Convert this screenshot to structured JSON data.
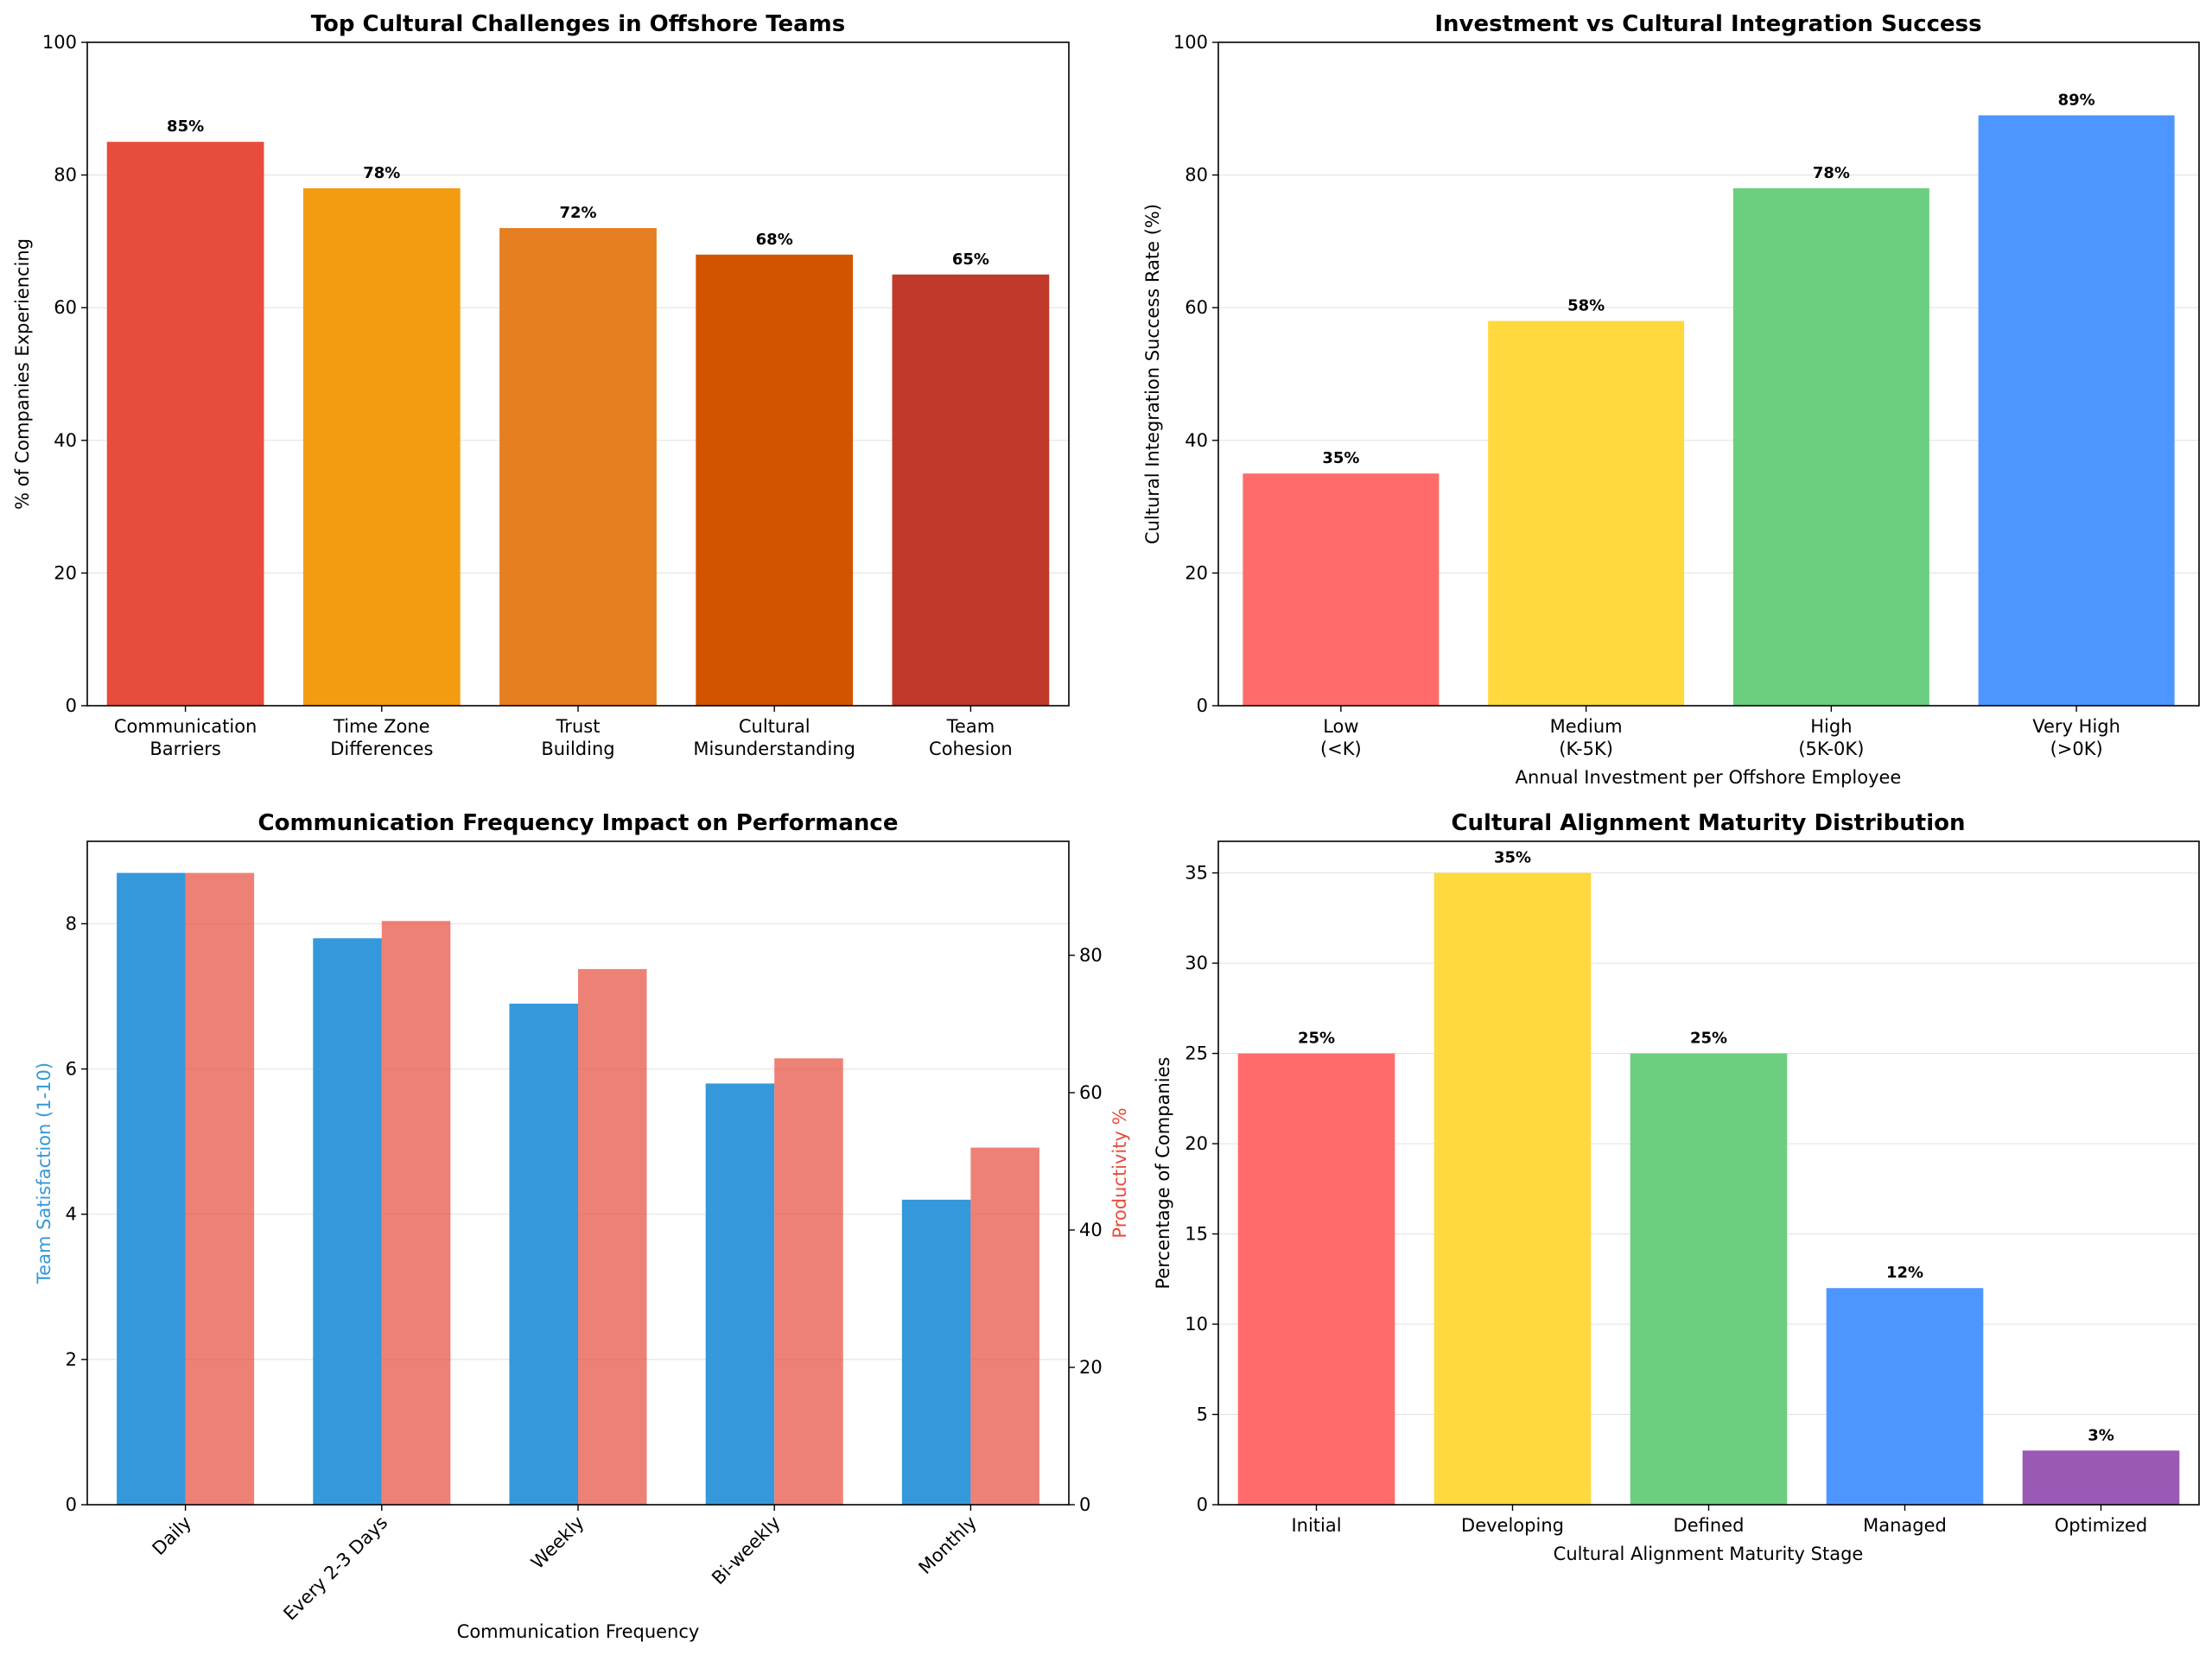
{
  "chart_data": [
    {
      "id": "challenges",
      "type": "bar",
      "title": "Top Cultural Challenges in Offshore Teams",
      "xlabel": "",
      "ylabel": "% of Companies Experiencing",
      "categories": [
        "Communication\nBarriers",
        "Time Zone\nDifferences",
        "Trust\nBuilding",
        "Cultural\nMisunderstanding",
        "Team\nCohesion"
      ],
      "values": [
        85,
        78,
        72,
        68,
        65
      ],
      "value_labels": [
        "85%",
        "78%",
        "72%",
        "68%",
        "65%"
      ],
      "colors": [
        "#e74c3c",
        "#f39c12",
        "#e67e22",
        "#d35400",
        "#c0392b"
      ],
      "ylim": [
        0,
        100
      ],
      "yticks": [
        0,
        20,
        40,
        60,
        80,
        100
      ],
      "grid": true
    },
    {
      "id": "investment",
      "type": "bar",
      "title": "Investment vs Cultural Integration Success",
      "xlabel": "Annual Investment per Offshore Employee",
      "ylabel": "Cultural Integration Success Rate (%)",
      "categories": [
        "Low\n(<K)",
        "Medium\n(K-5K)",
        "High\n(5K-0K)",
        "Very High\n(>0K)"
      ],
      "values": [
        35,
        58,
        78,
        89
      ],
      "value_labels": [
        "35%",
        "58%",
        "78%",
        "89%"
      ],
      "colors": [
        "#ff6b6b",
        "#ffd93d",
        "#6bcf7f",
        "#4d96ff"
      ],
      "ylim": [
        0,
        100
      ],
      "yticks": [
        0,
        20,
        40,
        60,
        80,
        100
      ],
      "grid": true
    },
    {
      "id": "frequency",
      "type": "bar",
      "title": "Communication Frequency Impact on Performance",
      "xlabel": "Communication Frequency",
      "ylabel": "Team Satisfaction (1-10)",
      "ylabel_right": "Productivity %",
      "categories": [
        "Daily",
        "Every 2-3 Days",
        "Weekly",
        "Bi-weekly",
        "Monthly"
      ],
      "series": [
        {
          "name": "Team Satisfaction (1-10)",
          "axis": "left",
          "values": [
            8.7,
            7.8,
            6.9,
            5.8,
            4.2
          ],
          "color": "#3498db"
        },
        {
          "name": "Productivity %",
          "axis": "right",
          "values": [
            92,
            85,
            78,
            65,
            52
          ],
          "color": "#e74c3c"
        }
      ],
      "ylim": [
        0,
        9.135
      ],
      "yticks": [
        0,
        2,
        4,
        6,
        8
      ],
      "ylim_right": [
        0,
        96.6
      ],
      "yticks_right": [
        0,
        20,
        40,
        60,
        80
      ],
      "left_label_color": "#3498db",
      "right_label_color": "#e74c3c",
      "grid": true
    },
    {
      "id": "maturity",
      "type": "bar",
      "title": "Cultural Alignment Maturity Distribution",
      "xlabel": "Cultural Alignment Maturity Stage",
      "ylabel": "Percentage of Companies",
      "categories": [
        "Initial",
        "Developing",
        "Defined",
        "Managed",
        "Optimized"
      ],
      "values": [
        25,
        35,
        25,
        12,
        3
      ],
      "value_labels": [
        "25%",
        "35%",
        "25%",
        "12%",
        "3%"
      ],
      "colors": [
        "#ff6b6b",
        "#ffd93d",
        "#6bcf7f",
        "#4d96ff",
        "#9b59b6"
      ],
      "ylim": [
        0,
        36.75
      ],
      "yticks": [
        0,
        5,
        10,
        15,
        20,
        25,
        30,
        35
      ],
      "grid": true
    }
  ]
}
